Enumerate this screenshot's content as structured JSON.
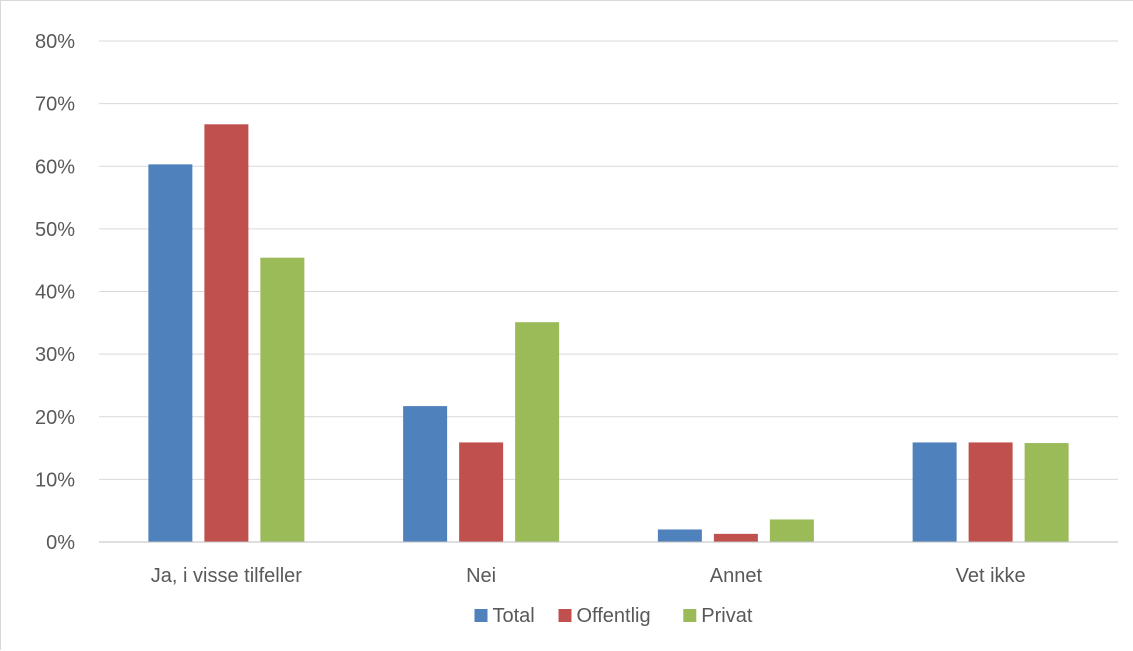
{
  "chart_data": {
    "type": "bar",
    "categories": [
      "Ja, i visse tilfeller",
      "Nei",
      "Annet",
      "Vet ikke"
    ],
    "series": [
      {
        "name": "Total",
        "values": [
          60.3,
          21.7,
          2.0,
          15.9
        ],
        "color": "#4f81bd"
      },
      {
        "name": "Offentlig",
        "values": [
          66.7,
          15.9,
          1.3,
          15.9
        ],
        "color": "#c0504d"
      },
      {
        "name": "Privat",
        "values": [
          45.4,
          35.1,
          3.6,
          15.8
        ],
        "color": "#9bbb59"
      }
    ],
    "y_tick_labels": [
      "0%",
      "10%",
      "20%",
      "30%",
      "40%",
      "50%",
      "60%",
      "70%",
      "80%"
    ],
    "ylim": [
      0,
      80
    ],
    "y_unit": "%",
    "grid": true,
    "legend_position": "bottom",
    "gridline_color": "#d9d9d9",
    "axis_line_color": "#bfbfbf",
    "text_color": "#595959"
  }
}
